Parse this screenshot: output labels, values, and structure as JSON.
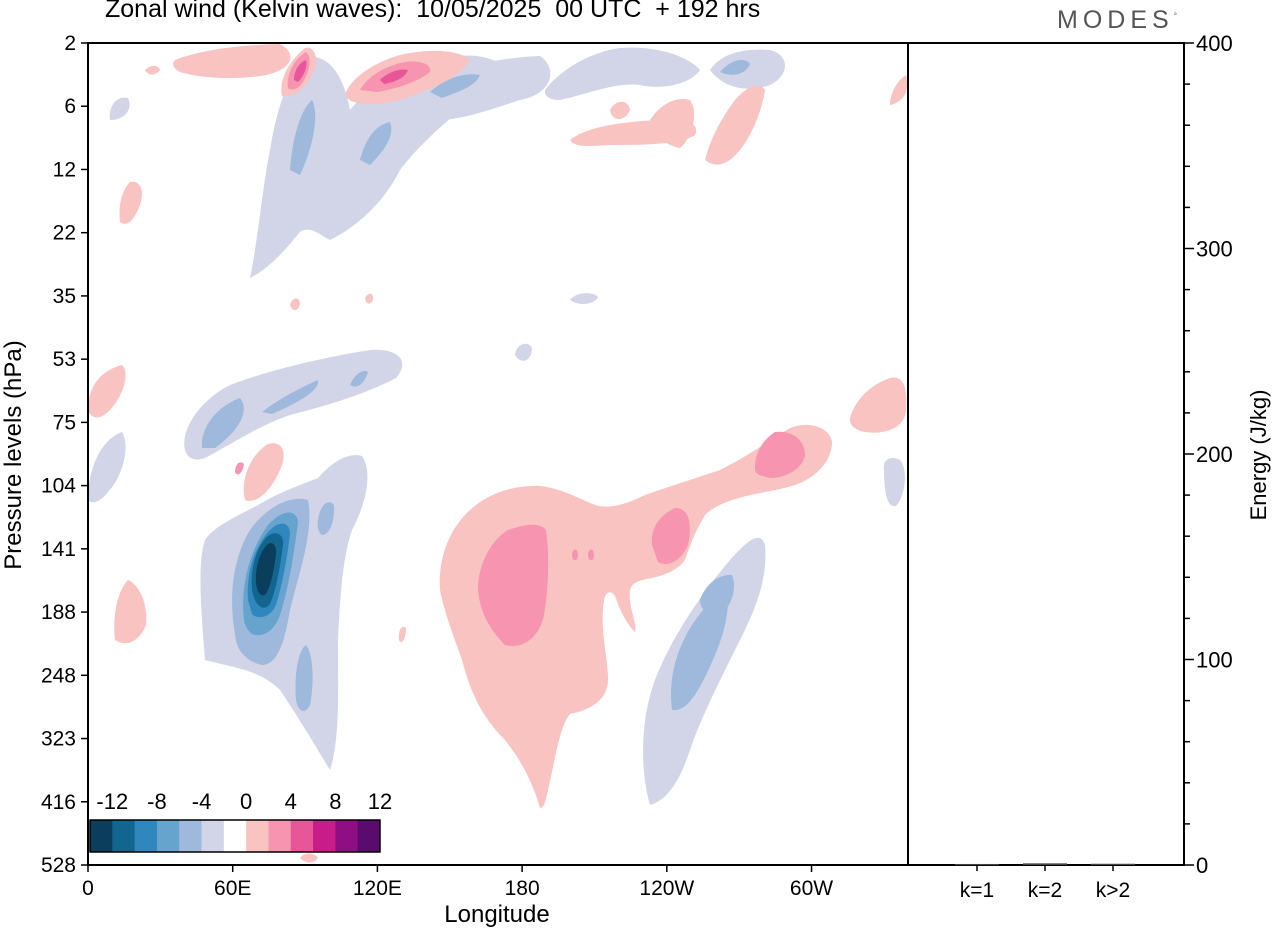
{
  "header": {
    "title": "Zonal wind (Kelvin waves):  10/05/2025  00 UTC  + 192 hrs",
    "brand": "MODES",
    "brand_mark": "°"
  },
  "chart_data": [
    {
      "type": "heatmap",
      "title": "Zonal wind (Kelvin waves):  10/05/2025  00 UTC  + 192 hrs",
      "xlabel": "Longitude",
      "ylabel": "Pressure levels (hPa)",
      "x_ticks": [
        "0",
        "60E",
        "120E",
        "180",
        "120W",
        "60W"
      ],
      "x_tick_values": [
        0,
        60,
        120,
        180,
        240,
        300
      ],
      "xlim": [
        0,
        340
      ],
      "y_ticks": [
        "2",
        "6",
        "12",
        "22",
        "35",
        "53",
        "75",
        "104",
        "141",
        "188",
        "248",
        "323",
        "416",
        "528"
      ],
      "y_scale": "log-like, inverted (pressure increases downward)",
      "colorbar": {
        "labels": [
          "-12",
          "-8",
          "-4",
          "0",
          "4",
          "8",
          "12"
        ],
        "levels": [
          -14,
          -12,
          -10,
          -8,
          -6,
          -4,
          -2,
          2,
          4,
          6,
          8,
          10,
          12,
          14
        ],
        "colors": [
          "#0b3d5c",
          "#12658f",
          "#2f87bd",
          "#66a3cd",
          "#9fb9dc",
          "#d2d5e8",
          "#ffffff",
          "#f8c3c0",
          "#f794b0",
          "#e8569a",
          "#c71c8a",
          "#8f0e84",
          "#5a0b6e"
        ]
      },
      "features": [
        {
          "name": "negative anomaly core",
          "lon": 76,
          "pressure_hPa": 150,
          "value": -12
        },
        {
          "name": "negative anomaly band",
          "lon": 290,
          "pressure_hPa": 230,
          "value": -6
        },
        {
          "name": "negative tilted band",
          "lon": 45,
          "pressure_hPa": 70,
          "value": -6
        },
        {
          "name": "positive anomaly region",
          "lon": 185,
          "pressure_hPa": 170,
          "value": 6
        },
        {
          "name": "positive anomaly band",
          "lon": 300,
          "pressure_hPa": 100,
          "value": 6
        },
        {
          "name": "positive upper core",
          "lon": 95,
          "pressure_hPa": 3,
          "value": 8
        },
        {
          "name": "positive upper core",
          "lon": 135,
          "pressure_hPa": 3.5,
          "value": 8
        }
      ]
    },
    {
      "type": "bar",
      "ylabel": "Energy (J/kg)",
      "categories": [
        "k=1",
        "k=2",
        "k>2"
      ],
      "values": [
        0.5,
        0.8,
        0.6
      ],
      "ylim": [
        0,
        400
      ],
      "y_ticks": [
        "0",
        "100",
        "200",
        "300",
        "400"
      ]
    }
  ]
}
